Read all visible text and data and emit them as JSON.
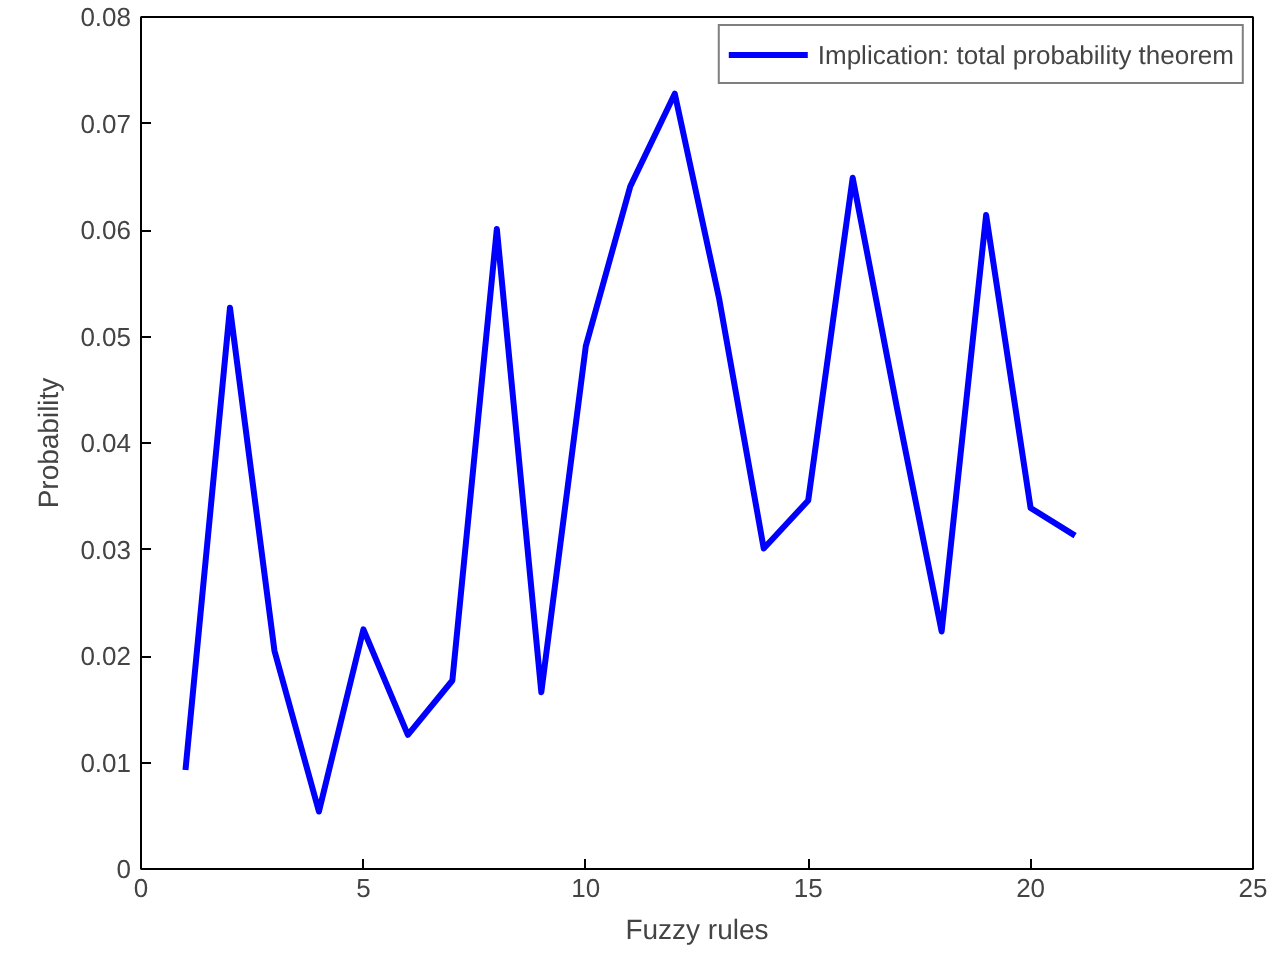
{
  "chart_data": {
    "type": "line",
    "xlabel": "Fuzzy rules",
    "ylabel": "Probability",
    "x": [
      1,
      2,
      3,
      4,
      5,
      6,
      7,
      8,
      9,
      10,
      11,
      12,
      13,
      14,
      15,
      16,
      17,
      18,
      19,
      20,
      21
    ],
    "series": [
      {
        "name": "Implication: total probability theorem",
        "color": "#0000ff",
        "values": [
          0.0093,
          0.0527,
          0.0205,
          0.0054,
          0.0225,
          0.0126,
          0.0177,
          0.0601,
          0.0166,
          0.0491,
          0.0641,
          0.0728,
          0.0535,
          0.0301,
          0.0346,
          0.0649,
          0.0432,
          0.0223,
          0.0614,
          0.0339,
          0.0313
        ]
      }
    ],
    "xlim": [
      0,
      25
    ],
    "xticks": [
      0,
      5,
      10,
      15,
      20,
      25
    ],
    "ylim": [
      0,
      0.08
    ],
    "yticks": [
      0,
      0.01,
      0.02,
      0.03,
      0.04,
      0.05,
      0.06,
      0.07,
      0.08
    ],
    "grid": false,
    "legend": "top right",
    "line_style": "solid",
    "marker": "none"
  }
}
